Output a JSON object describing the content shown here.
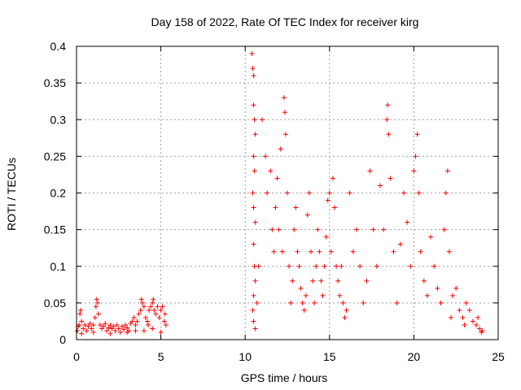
{
  "chart_data": {
    "type": "scatter",
    "title": "Day 158 of 2022, Rate Of TEC Index for receiver kirg",
    "xlabel": "GPS time / hours",
    "ylabel": "ROTI / TECUs",
    "xlim": [
      0,
      25
    ],
    "ylim": [
      0,
      0.4
    ],
    "x_ticks": [
      0,
      5,
      10,
      15,
      20,
      25
    ],
    "y_ticks": [
      0,
      0.05,
      0.1,
      0.15,
      0.2,
      0.25,
      0.3,
      0.35,
      0.4
    ],
    "x_tick_labels": [
      "0",
      "5",
      "10",
      "15",
      "20",
      "25"
    ],
    "y_tick_labels": [
      "0",
      "0.05",
      "0.1",
      "0.15",
      "0.2",
      "0.25",
      "0.3",
      "0.35",
      "0.4"
    ],
    "grid": true,
    "marker": "+",
    "marker_color": "#ff0000",
    "series": [
      {
        "name": "ROTI",
        "points": [
          [
            0.05,
            0.012
          ],
          [
            0.1,
            0.018
          ],
          [
            0.15,
            0.02
          ],
          [
            0.2,
            0.035
          ],
          [
            0.25,
            0.04
          ],
          [
            0.3,
            0.025
          ],
          [
            0.4,
            0.015
          ],
          [
            0.5,
            0.02
          ],
          [
            0.6,
            0.012
          ],
          [
            0.7,
            0.018
          ],
          [
            0.8,
            0.022
          ],
          [
            0.9,
            0.015
          ],
          [
            1.0,
            0.02
          ],
          [
            1.1,
            0.03
          ],
          [
            1.15,
            0.045
          ],
          [
            1.2,
            0.055
          ],
          [
            1.25,
            0.05
          ],
          [
            1.3,
            0.035
          ],
          [
            1.4,
            0.02
          ],
          [
            1.5,
            0.015
          ],
          [
            1.6,
            0.018
          ],
          [
            1.7,
            0.022
          ],
          [
            1.8,
            0.012
          ],
          [
            1.9,
            0.016
          ],
          [
            2.0,
            0.02
          ],
          [
            2.1,
            0.015
          ],
          [
            2.2,
            0.018
          ],
          [
            2.3,
            0.012
          ],
          [
            2.4,
            0.02
          ],
          [
            2.5,
            0.015
          ],
          [
            2.6,
            0.01
          ],
          [
            2.7,
            0.018
          ],
          [
            2.8,
            0.014
          ],
          [
            2.9,
            0.02
          ],
          [
            3.0,
            0.016
          ],
          [
            3.1,
            0.012
          ],
          [
            3.2,
            0.022
          ],
          [
            3.3,
            0.025
          ],
          [
            3.4,
            0.03
          ],
          [
            3.5,
            0.02
          ],
          [
            3.6,
            0.025
          ],
          [
            3.7,
            0.035
          ],
          [
            3.8,
            0.04
          ],
          [
            3.85,
            0.055
          ],
          [
            3.9,
            0.05
          ],
          [
            4.0,
            0.045
          ],
          [
            4.1,
            0.03
          ],
          [
            4.2,
            0.025
          ],
          [
            4.3,
            0.04
          ],
          [
            4.4,
            0.045
          ],
          [
            4.5,
            0.05
          ],
          [
            4.55,
            0.055
          ],
          [
            4.6,
            0.04
          ],
          [
            4.7,
            0.035
          ],
          [
            4.8,
            0.045
          ],
          [
            4.9,
            0.03
          ],
          [
            5.0,
            0.04
          ],
          [
            5.1,
            0.045
          ],
          [
            5.2,
            0.025
          ],
          [
            5.3,
            0.02
          ],
          [
            0.3,
            0.008
          ],
          [
            1.0,
            0.01
          ],
          [
            2.0,
            0.008
          ],
          [
            3.0,
            0.01
          ],
          [
            4.0,
            0.012
          ],
          [
            5.0,
            0.01
          ],
          [
            3.5,
            0.012
          ],
          [
            4.5,
            0.015
          ],
          [
            5.25,
            0.035
          ],
          [
            4.25,
            0.02
          ],
          [
            10.4,
            0.39
          ],
          [
            10.45,
            0.37
          ],
          [
            10.5,
            0.36
          ],
          [
            10.5,
            0.32
          ],
          [
            10.55,
            0.3
          ],
          [
            10.6,
            0.28
          ],
          [
            10.5,
            0.25
          ],
          [
            10.55,
            0.23
          ],
          [
            10.45,
            0.2
          ],
          [
            10.5,
            0.18
          ],
          [
            10.6,
            0.16
          ],
          [
            10.5,
            0.13
          ],
          [
            10.55,
            0.1
          ],
          [
            10.6,
            0.08
          ],
          [
            10.5,
            0.06
          ],
          [
            10.45,
            0.04
          ],
          [
            10.5,
            0.025
          ],
          [
            10.6,
            0.015
          ],
          [
            10.7,
            0.05
          ],
          [
            10.8,
            0.1
          ],
          [
            11.0,
            0.3
          ],
          [
            11.2,
            0.25
          ],
          [
            11.3,
            0.2
          ],
          [
            11.5,
            0.23
          ],
          [
            11.6,
            0.15
          ],
          [
            11.7,
            0.12
          ],
          [
            11.8,
            0.18
          ],
          [
            11.9,
            0.22
          ],
          [
            12.0,
            0.15
          ],
          [
            12.1,
            0.26
          ],
          [
            12.2,
            0.12
          ],
          [
            12.3,
            0.33
          ],
          [
            12.35,
            0.31
          ],
          [
            12.4,
            0.28
          ],
          [
            12.5,
            0.2
          ],
          [
            12.6,
            0.1
          ],
          [
            12.7,
            0.05
          ],
          [
            12.8,
            0.08
          ],
          [
            12.9,
            0.15
          ],
          [
            13.0,
            0.18
          ],
          [
            13.1,
            0.12
          ],
          [
            13.2,
            0.1
          ],
          [
            13.3,
            0.07
          ],
          [
            13.4,
            0.05
          ],
          [
            13.5,
            0.04
          ],
          [
            13.6,
            0.06
          ],
          [
            13.7,
            0.17
          ],
          [
            13.8,
            0.2
          ],
          [
            13.9,
            0.12
          ],
          [
            14.0,
            0.08
          ],
          [
            14.1,
            0.05
          ],
          [
            14.2,
            0.1
          ],
          [
            14.3,
            0.15
          ],
          [
            14.4,
            0.12
          ],
          [
            14.5,
            0.08
          ],
          [
            14.6,
            0.06
          ],
          [
            14.7,
            0.1
          ],
          [
            14.8,
            0.14
          ],
          [
            14.9,
            0.19
          ],
          [
            15.0,
            0.2
          ],
          [
            15.1,
            0.12
          ],
          [
            15.2,
            0.22
          ],
          [
            15.3,
            0.18
          ],
          [
            15.4,
            0.1
          ],
          [
            15.5,
            0.08
          ],
          [
            15.6,
            0.06
          ],
          [
            15.7,
            0.1
          ],
          [
            15.8,
            0.05
          ],
          [
            15.9,
            0.03
          ],
          [
            16.0,
            0.04
          ],
          [
            16.2,
            0.2
          ],
          [
            16.4,
            0.12
          ],
          [
            16.6,
            0.15
          ],
          [
            16.8,
            0.1
          ],
          [
            17.0,
            0.05
          ],
          [
            17.2,
            0.08
          ],
          [
            17.4,
            0.23
          ],
          [
            17.6,
            0.15
          ],
          [
            17.8,
            0.1
          ],
          [
            18.0,
            0.21
          ],
          [
            18.2,
            0.15
          ],
          [
            18.4,
            0.3
          ],
          [
            18.45,
            0.32
          ],
          [
            18.5,
            0.28
          ],
          [
            18.6,
            0.22
          ],
          [
            18.8,
            0.12
          ],
          [
            19.0,
            0.05
          ],
          [
            19.2,
            0.13
          ],
          [
            19.4,
            0.2
          ],
          [
            19.6,
            0.16
          ],
          [
            19.8,
            0.1
          ],
          [
            20.0,
            0.23
          ],
          [
            20.1,
            0.25
          ],
          [
            20.2,
            0.28
          ],
          [
            20.3,
            0.2
          ],
          [
            20.4,
            0.12
          ],
          [
            20.6,
            0.08
          ],
          [
            20.8,
            0.06
          ],
          [
            21.0,
            0.14
          ],
          [
            21.2,
            0.1
          ],
          [
            21.4,
            0.07
          ],
          [
            21.6,
            0.05
          ],
          [
            21.8,
            0.15
          ],
          [
            21.9,
            0.2
          ],
          [
            22.0,
            0.23
          ],
          [
            22.1,
            0.12
          ],
          [
            22.3,
            0.06
          ],
          [
            22.5,
            0.07
          ],
          [
            22.7,
            0.04
          ],
          [
            22.9,
            0.03
          ],
          [
            23.1,
            0.05
          ],
          [
            23.3,
            0.04
          ],
          [
            23.5,
            0.025
          ],
          [
            23.7,
            0.02
          ],
          [
            23.9,
            0.015
          ],
          [
            24.0,
            0.01
          ],
          [
            24.05,
            0.012
          ],
          [
            23.8,
            0.03
          ],
          [
            23.0,
            0.02
          ],
          [
            22.2,
            0.03
          ]
        ]
      }
    ]
  }
}
